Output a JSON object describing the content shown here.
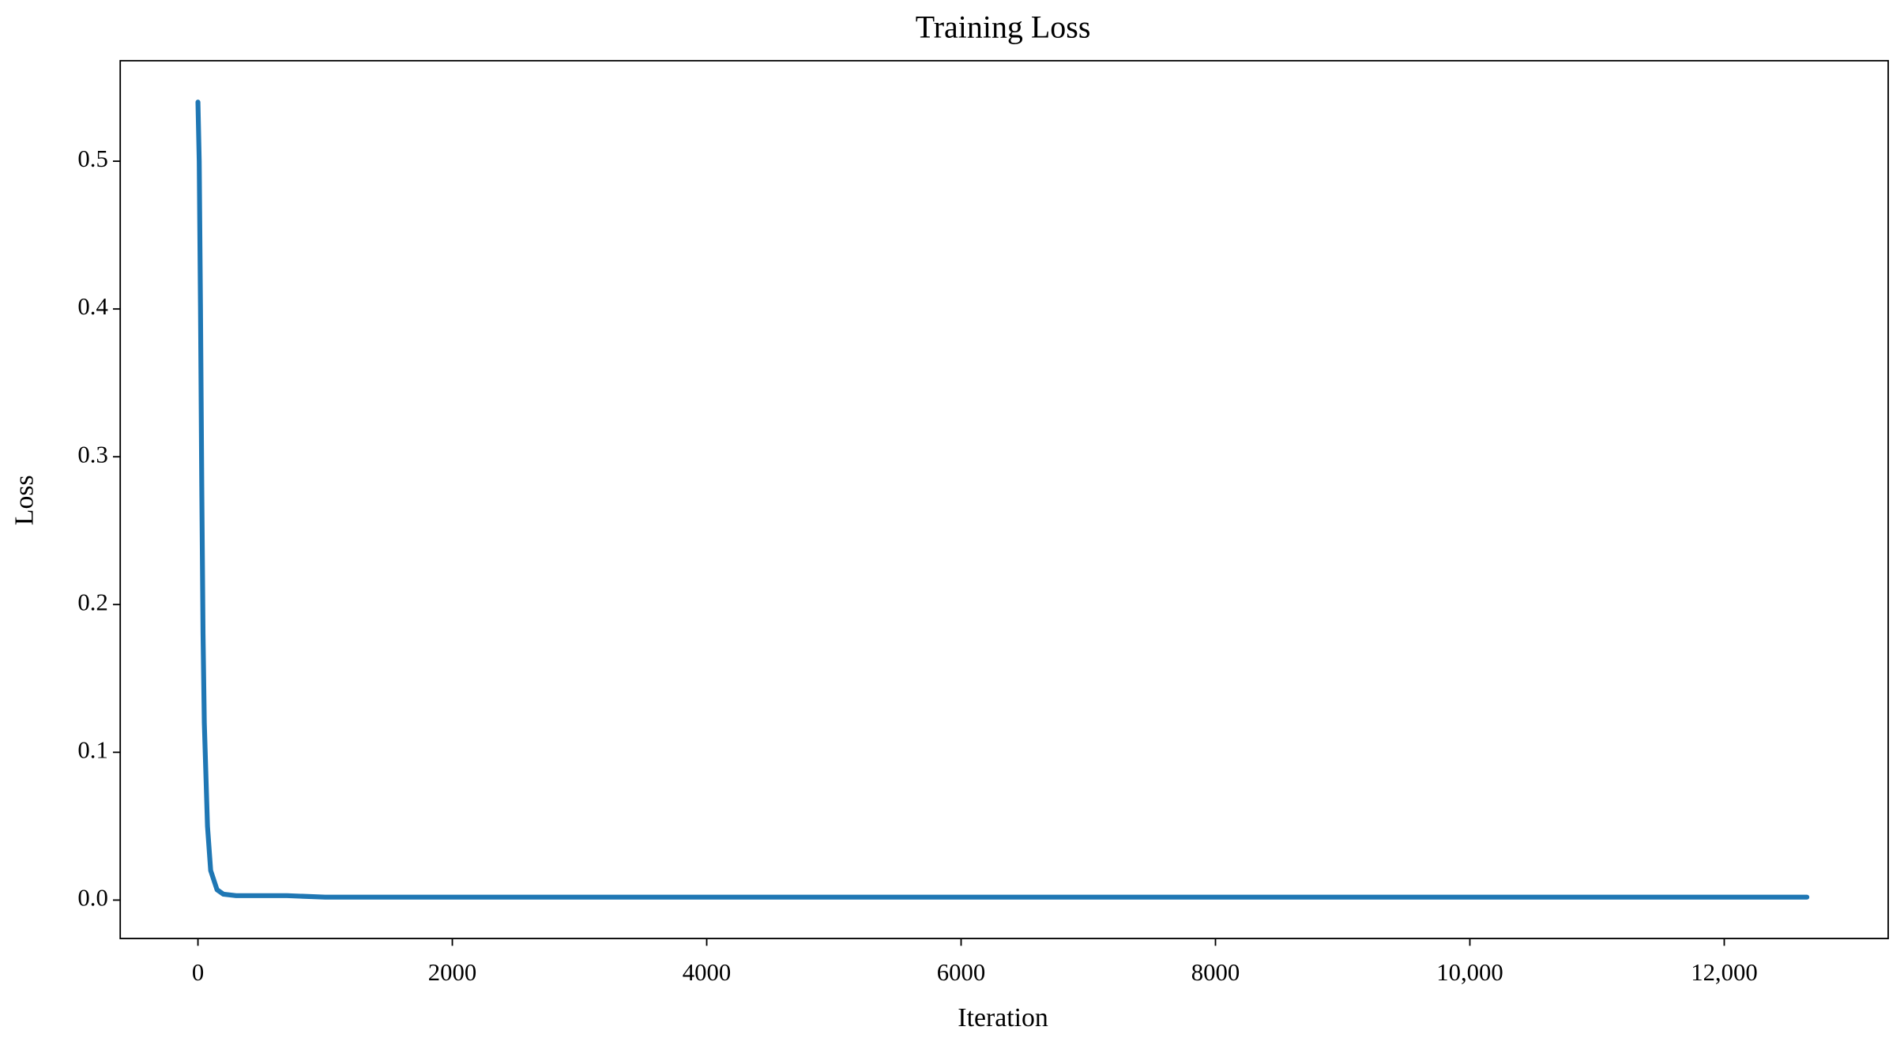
{
  "chart_data": {
    "type": "line",
    "title": "Training Loss",
    "x_label": "Iteration",
    "y_label": "Loss",
    "x": [
      0,
      10,
      20,
      30,
      40,
      50,
      75,
      100,
      150,
      200,
      300,
      500,
      700,
      1000,
      1500,
      2000,
      3000,
      4000,
      5000,
      6000,
      7000,
      8000,
      9000,
      10000,
      11000,
      12000,
      12650
    ],
    "series": [
      {
        "name": "Loss",
        "color": "#1f77b4",
        "values": [
          0.54,
          0.5,
          0.4,
          0.28,
          0.18,
          0.12,
          0.05,
          0.02,
          0.007,
          0.004,
          0.003,
          0.003,
          0.003,
          0.002,
          0.002,
          0.002,
          0.002,
          0.002,
          0.002,
          0.002,
          0.002,
          0.002,
          0.002,
          0.002,
          0.002,
          0.002,
          0.002
        ]
      }
    ],
    "xlim": [
      -611,
      13289
    ],
    "ylim": [
      -0.026,
      0.568
    ],
    "xticks": [
      0,
      2000,
      4000,
      6000,
      8000,
      {
        "value": 10000,
        "label": "10,000"
      },
      {
        "value": 12000,
        "label": "12,000"
      }
    ],
    "yticks": [
      {
        "value": 0,
        "label": "0.0"
      },
      0.1,
      0.2,
      0.3,
      0.4,
      0.5
    ],
    "grid": false
  }
}
